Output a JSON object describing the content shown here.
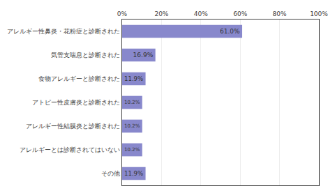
{
  "chart_data": {
    "type": "bar",
    "orientation": "horizontal",
    "categories": [
      "アレルギー性鼻炎・花粉症と診断された",
      "気管支喘息と診断された",
      "食物アレルギーと診断された",
      "アトピー性皮膚炎と診断された",
      "アレルギー性結膜炎と診断された",
      "アレルギーとは診断されてはいない",
      "その他"
    ],
    "values": [
      61.0,
      16.9,
      11.9,
      10.2,
      10.2,
      10.2,
      11.9
    ],
    "value_labels": [
      "61.0%",
      "16.9%",
      "11.9%",
      "10.2%",
      "10.2%",
      "10.2%",
      "11.9%"
    ],
    "data_labels": true,
    "color": "#8888cc",
    "xlim": [
      0,
      100
    ],
    "xticks": [
      {
        "value": 0,
        "label": "0%"
      },
      {
        "value": 20,
        "label": "20%"
      },
      {
        "value": 40,
        "label": "40%"
      },
      {
        "value": 60,
        "label": "60%"
      },
      {
        "value": 80,
        "label": "80%"
      },
      {
        "value": 100,
        "label": "100%"
      }
    ],
    "grid": true
  }
}
